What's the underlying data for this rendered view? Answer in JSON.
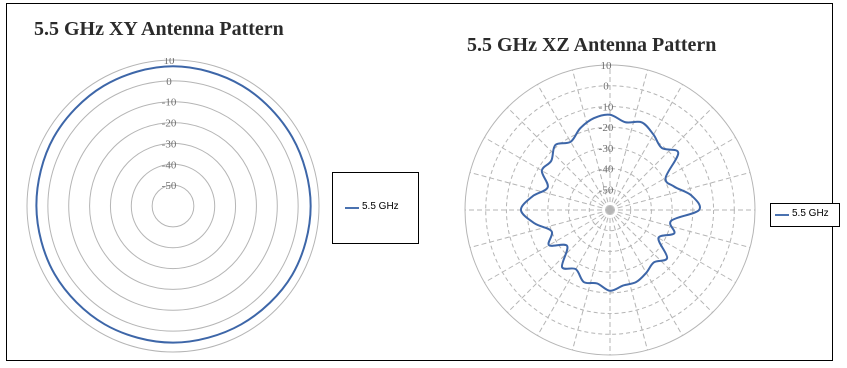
{
  "chart_data": [
    {
      "type": "polar-line",
      "title": "5.5 GHz XY Antenna Pattern",
      "r_ticks": [
        "10",
        "0",
        "-10",
        "-20",
        "-30",
        "-40",
        "-50"
      ],
      "rlim": [
        -60,
        10
      ],
      "angular_grid": false,
      "series": [
        {
          "name": "5.5 GHz",
          "color": "#3d66a8",
          "theta_deg": [
            0,
            30,
            60,
            90,
            120,
            150,
            180,
            210,
            240,
            270,
            300,
            330
          ],
          "values": [
            7,
            6.5,
            6,
            6,
            6,
            5.5,
            5.5,
            5.5,
            5.5,
            5.5,
            6,
            6.5
          ]
        }
      ],
      "legend_position": "right"
    },
    {
      "type": "polar-line",
      "title": "5.5 GHz XZ Antenna Pattern",
      "r_ticks": [
        "10",
        "0",
        "-10",
        "-20",
        "-30",
        "-40",
        "-50"
      ],
      "rlim": [
        -60,
        10
      ],
      "angular_grid": true,
      "series": [
        {
          "name": "5.5 GHz",
          "color": "#3d66a8",
          "theta_deg": [
            0,
            10,
            20,
            30,
            40,
            50,
            60,
            70,
            80,
            90,
            100,
            110,
            120,
            130,
            140,
            150,
            160,
            170,
            180,
            190,
            200,
            210,
            220,
            230,
            240,
            250,
            260,
            270,
            280,
            290,
            300,
            310,
            320,
            330,
            340,
            350
          ],
          "values": [
            -14,
            -17,
            -15,
            -18,
            -21,
            -17,
            -29,
            -27,
            -20,
            -17,
            -30,
            -27,
            -33,
            -24,
            -27,
            -25,
            -23,
            -23,
            -21,
            -24,
            -23,
            -27,
            -24,
            -33,
            -26,
            -30,
            -23,
            -17,
            -22,
            -28,
            -22,
            -23,
            -19,
            -22,
            -18,
            -15
          ]
        }
      ],
      "legend_position": "right"
    }
  ]
}
